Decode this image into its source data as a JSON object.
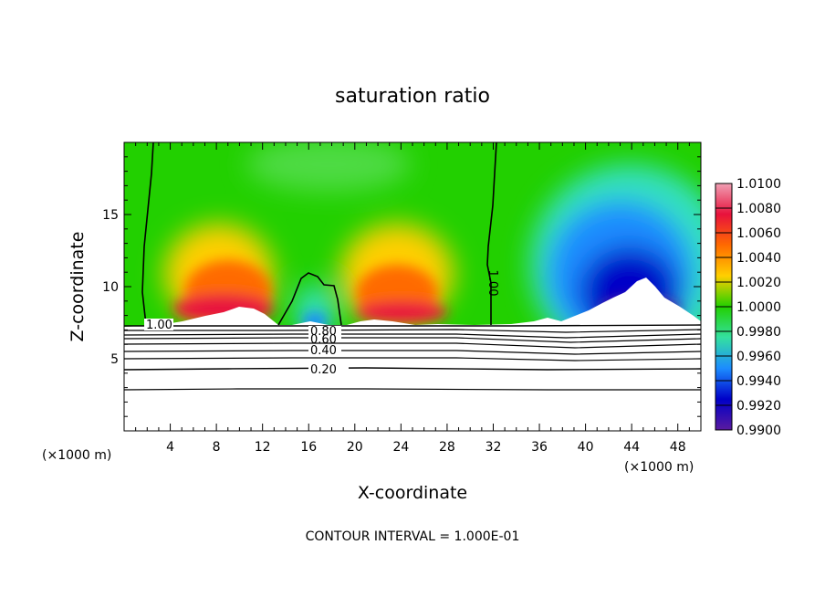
{
  "chart_data": {
    "type": "heatmap",
    "title": "saturation ratio",
    "xlabel": "X-coordinate",
    "ylabel": "Z-coordinate",
    "x_unit": "(×1000 m)",
    "y_unit": "(×1000 m)",
    "xlim": [
      0,
      50
    ],
    "ylim": [
      0,
      20
    ],
    "x_ticks": [
      "4",
      "8",
      "12",
      "16",
      "20",
      "24",
      "28",
      "32",
      "36",
      "40",
      "44",
      "48"
    ],
    "y_ticks": [
      "5",
      "10",
      "15"
    ],
    "colorbar": {
      "min": 0.99,
      "max": 1.01,
      "labels": [
        "1.0100",
        "1.0080",
        "1.0060",
        "1.0040",
        "1.0020",
        "1.0000",
        "0.9980",
        "0.9960",
        "0.9940",
        "0.9920",
        "0.9900"
      ],
      "colors": [
        "#f0a0b4",
        "#e8123c",
        "#ff6a00",
        "#ffcf00",
        "#22d000",
        "#34e0a0",
        "#1c8cff",
        "#0000c8",
        "#5a1aa0"
      ]
    },
    "contours": [
      {
        "level": 1.0,
        "label": "1.00"
      },
      {
        "level": 0.8,
        "label": "0.80"
      },
      {
        "level": 0.6,
        "label": "0.60"
      },
      {
        "level": 0.4,
        "label": "0.40"
      },
      {
        "level": 0.2,
        "label": "0.20"
      }
    ],
    "contour_interval": "CONTOUR INTERVAL = 1.000E-01"
  }
}
